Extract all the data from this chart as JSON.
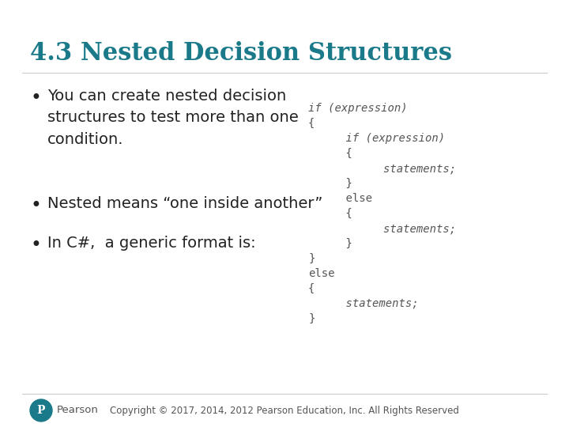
{
  "title": "4.3 Nested Decision Structures",
  "title_color": "#1a7a8a",
  "title_fontsize": 22,
  "bg_color": "#FFFFFF",
  "bullet_points": [
    "You can create nested decision\nstructures to test more than one\ncondition.",
    "Nested means “one inside another”",
    "In C#,  a generic format is:"
  ],
  "bullet_color": "#222222",
  "bullet_fontsize": 14,
  "code_lines": [
    [
      "if (expression)",
      0
    ],
    [
      "{",
      0
    ],
    [
      "    if (expression)",
      1
    ],
    [
      "    {",
      1
    ],
    [
      "        statements;",
      2
    ],
    [
      "    }",
      1
    ],
    [
      "    else",
      1
    ],
    [
      "    {",
      1
    ],
    [
      "        statements;",
      2
    ],
    [
      "    }",
      1
    ],
    [
      "}",
      0
    ],
    [
      "else",
      0
    ],
    [
      "{",
      0
    ],
    [
      "    statements;",
      1
    ],
    [
      "}",
      0
    ]
  ],
  "code_italic_words": [
    "expression",
    "statements"
  ],
  "code_color": "#555555",
  "code_fontsize": 10,
  "footer_text": "Copyright © 2017, 2014, 2012 Pearson Education, Inc. All Rights Reserved",
  "footer_color": "#555555",
  "footer_fontsize": 8.5,
  "pearson_text": "Pearson",
  "pearson_color": "#555555",
  "pearson_circle_color": "#1a7a8a"
}
